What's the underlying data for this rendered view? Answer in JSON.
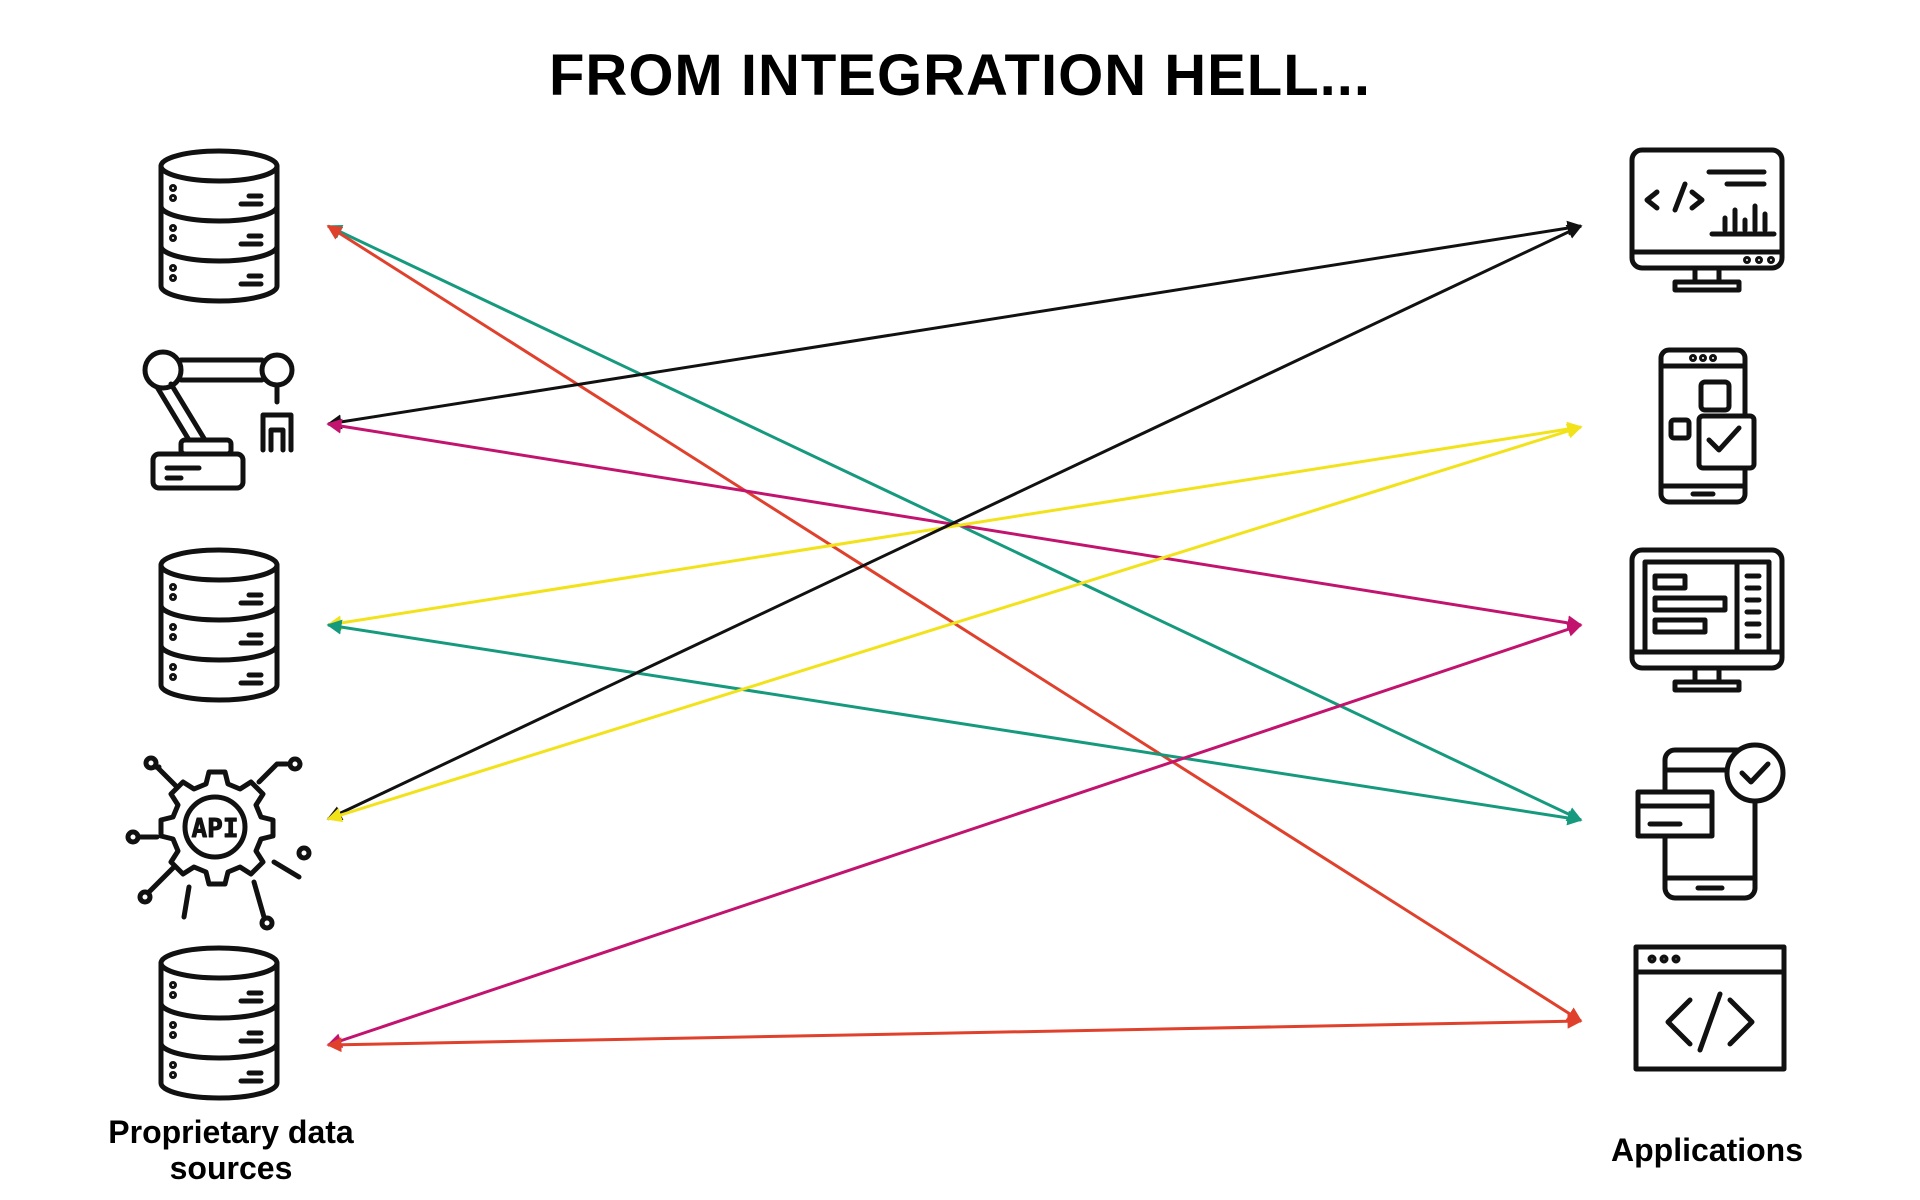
{
  "header": {
    "title": "FROM INTEGRATION HELL..."
  },
  "left_label": "Proprietary data sources",
  "right_label": "Applications"
}
